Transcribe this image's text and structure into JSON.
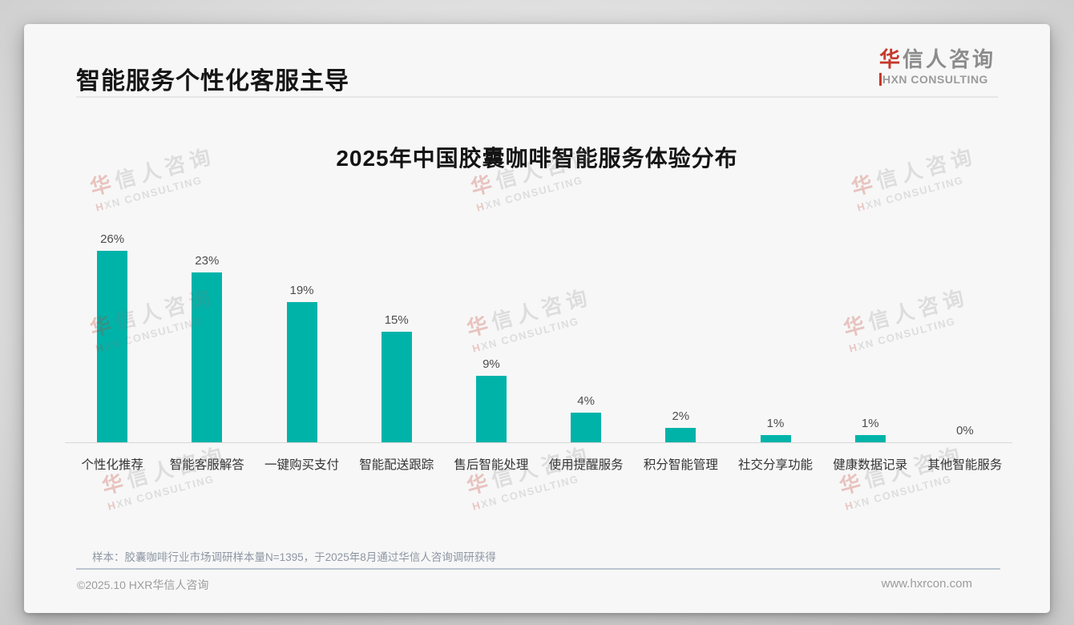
{
  "header": {
    "title": "智能服务个性化客服主导"
  },
  "logo": {
    "brand_cn_first": "华",
    "brand_cn_rest": "信人咨询",
    "brand_en_first": "H",
    "brand_en_rest": "XN CONSULTING"
  },
  "watermark": {
    "line1_first": "华",
    "line1_rest": "信人咨询",
    "line2_first": "H",
    "line2_rest": "XN CONSULTING"
  },
  "chart_data": {
    "type": "bar",
    "title": "2025年中国胶囊咖啡智能服务体验分布",
    "categories": [
      "个性化推荐",
      "智能客服解答",
      "一键购买支付",
      "智能配送跟踪",
      "售后智能处理",
      "使用提醒服务",
      "积分智能管理",
      "社交分享功能",
      "健康数据记录",
      "其他智能服务"
    ],
    "values": [
      26,
      23,
      19,
      15,
      9,
      4,
      2,
      1,
      1,
      0
    ],
    "value_labels": [
      "26%",
      "23%",
      "19%",
      "15%",
      "9%",
      "4%",
      "2%",
      "1%",
      "1%",
      "0%"
    ],
    "xlabel": "",
    "ylabel": "",
    "ylim": [
      0,
      28
    ],
    "grid": false,
    "legend": false,
    "bar_color": "#00b3a9"
  },
  "footnote": "样本：胶囊咖啡行业市场调研样本量N=1395，于2025年8月通过华信人咨询调研获得",
  "footer": {
    "left": "©2025.10 HXR华信人咨询",
    "right": "www.hxrcon.com"
  },
  "colors": {
    "bar": "#00b3a9",
    "logo_red": "#c43a2c",
    "title_text": "#161616",
    "footnote_text": "#8d96a3",
    "footer_text": "#9c9c9c"
  }
}
